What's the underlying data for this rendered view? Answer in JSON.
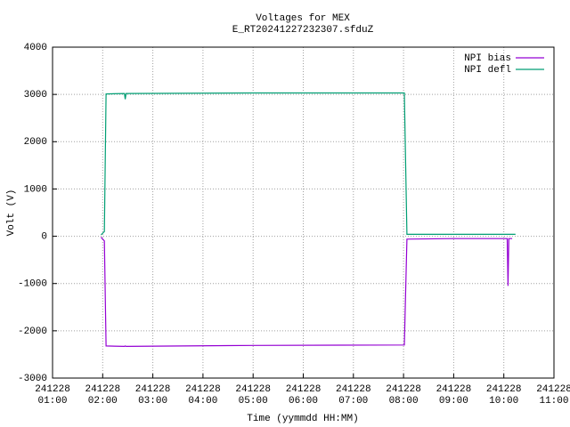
{
  "chart_data": {
    "type": "line",
    "title": "Voltages for MEX",
    "subtitle": "E_RT20241227232307.sfduZ",
    "x_label": "Time (yymmdd HH:MM)",
    "y_label": "Volt (V)",
    "x": [
      "241228 01:58",
      "241228 02:02",
      "241228 02:04",
      "241228 02:26",
      "241228 02:27",
      "241228 02:28",
      "241228 05:00",
      "241228 08:01",
      "241228 08:04",
      "241228 09:00",
      "241228 10:04",
      "241228 10:05",
      "241228 10:06",
      "241228 10:10",
      "241228 10:14"
    ],
    "series": [
      {
        "name": "NPI bias",
        "color": "#9400d3",
        "values": [
          -20,
          -100,
          -2320,
          -2330,
          -2320,
          -2330,
          -2310,
          -2300,
          -60,
          -50,
          -50,
          -1050,
          -50,
          -50,
          null
        ]
      },
      {
        "name": "NPI defl",
        "color": "#009e73",
        "values": [
          30,
          100,
          3010,
          3020,
          2900,
          3020,
          3030,
          3030,
          40,
          40,
          40,
          40,
          40,
          40,
          40
        ]
      }
    ],
    "xlim": [
      "241228 01:00",
      "241228 11:00"
    ],
    "xticks": [
      "241228 01:00",
      "241228 02:00",
      "241228 03:00",
      "241228 04:00",
      "241228 05:00",
      "241228 06:00",
      "241228 07:00",
      "241228 08:00",
      "241228 09:00",
      "241228 10:00",
      "241228 11:00"
    ],
    "ylim": [
      -3000,
      4000
    ],
    "yticks": [
      -3000,
      -2000,
      -1000,
      0,
      1000,
      2000,
      3000,
      4000
    ],
    "grid": true,
    "legend": "top-right"
  }
}
